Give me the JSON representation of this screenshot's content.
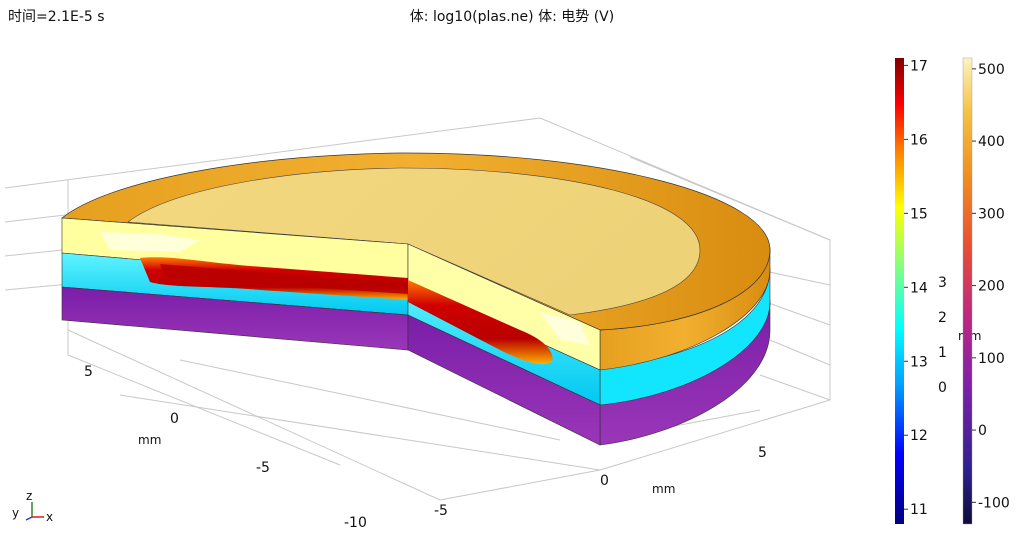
{
  "header": {
    "time_label": "时间=2.1E-5 s",
    "plot_title": "体: log10(plas.ne)  体: 电势 (V)"
  },
  "colors": {
    "plasma_core": "#c80000",
    "plasma_mid": "#ff4a00",
    "hot_yellow": "#ffff9a",
    "top_surface": "#f0d880",
    "rim_orange": "#e8a020",
    "cyan_layer": "#00e8ff",
    "purple_base": "#8a2aae"
  },
  "triad": {
    "y": "y",
    "z": "z",
    "x": "x"
  },
  "chart_data": {
    "type": "heatmap",
    "description_type": "3d-volume",
    "axes": {
      "x": {
        "unit": "mm",
        "ticks": [
          "-5",
          "0",
          "5"
        ]
      },
      "y": {
        "unit": "mm",
        "ticks": [
          "5",
          "0",
          "-5",
          "-10"
        ]
      },
      "z": {
        "unit": "mm",
        "ticks": [
          "0",
          "1",
          "2",
          "3"
        ]
      }
    },
    "colorbars": [
      {
        "quantity": "log10(plas.ne)",
        "range": [
          10.8,
          17.1
        ],
        "ticks": [
          "11",
          "12",
          "13",
          "14",
          "15",
          "16",
          "17"
        ],
        "colormap": "rainbow"
      },
      {
        "quantity": "电势 (V)",
        "range": [
          -130,
          515
        ],
        "ticks": [
          "-100",
          "0",
          "100",
          "200",
          "300",
          "400",
          "500"
        ],
        "colormap": "thermal"
      }
    ]
  }
}
